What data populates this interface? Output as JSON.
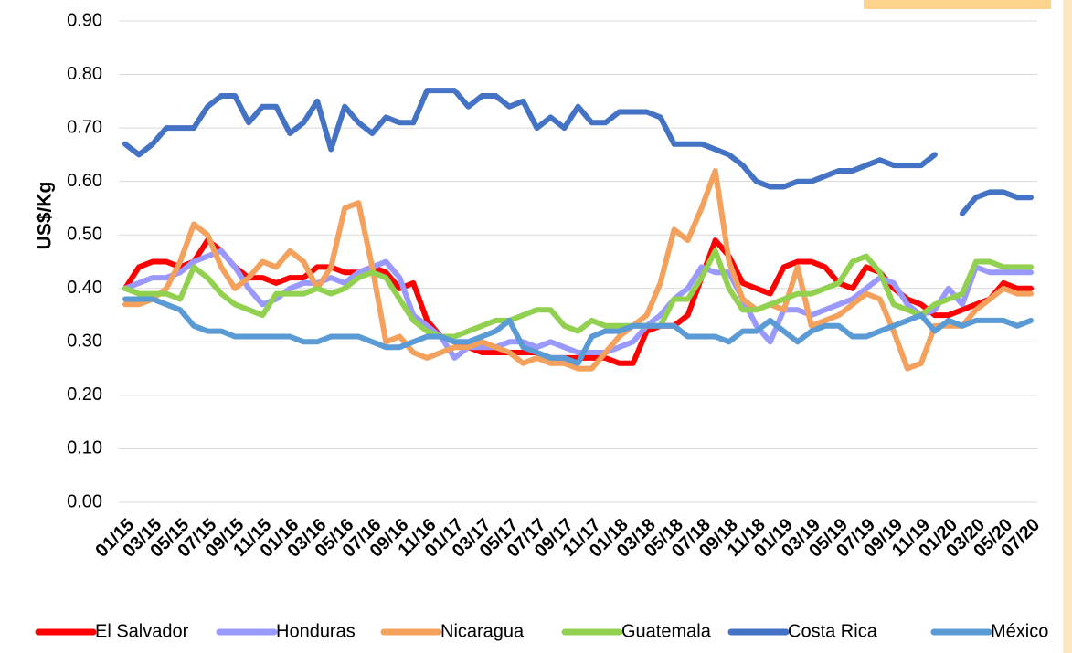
{
  "chart_data": {
    "type": "line",
    "y_label": "US$/Kg",
    "categories": [
      "01/15",
      null,
      "03/15",
      null,
      "05/15",
      null,
      "07/15",
      null,
      "09/15",
      null,
      "11/15",
      null,
      "01/16",
      null,
      "03/16",
      null,
      "05/16",
      null,
      "07/16",
      null,
      "09/16",
      null,
      "11/16",
      null,
      "01/17",
      null,
      "03/17",
      null,
      "05/17",
      null,
      "07/17",
      null,
      "09/17",
      null,
      "11/17",
      null,
      "01/18",
      null,
      "03/18",
      null,
      "05/18",
      null,
      "07/18",
      null,
      "09/18",
      null,
      "11/18",
      null,
      "01/19",
      null,
      "03/19",
      null,
      "05/19",
      null,
      "07/19",
      null,
      "09/19",
      null,
      "11/19",
      null,
      "01/20",
      null,
      "03/20",
      null,
      "05/20",
      null,
      "07/20"
    ],
    "ylim": [
      0,
      0.9
    ],
    "yticks": [
      {
        "value": 0,
        "label": "0.00"
      },
      {
        "value": 0.1,
        "label": "0.10"
      },
      {
        "value": 0.2,
        "label": "0.20"
      },
      {
        "value": 0.3,
        "label": "0.30"
      },
      {
        "value": 0.4,
        "label": "0.40"
      },
      {
        "value": 0.5,
        "label": "0.50"
      },
      {
        "value": 0.6,
        "label": "0.60"
      },
      {
        "value": 0.7,
        "label": "0.70"
      },
      {
        "value": 0.8,
        "label": "0.80"
      },
      {
        "value": 0.9,
        "label": "0.90"
      }
    ],
    "grid": true,
    "legend": "bottom",
    "series": [
      {
        "name": "El Salvador",
        "color": "#ff0000",
        "values": [
          0.4,
          0.44,
          0.45,
          0.45,
          0.44,
          0.45,
          0.49,
          0.47,
          0.44,
          0.42,
          0.42,
          0.41,
          0.42,
          0.42,
          0.44,
          0.44,
          0.43,
          0.43,
          0.44,
          0.43,
          0.4,
          0.41,
          0.34,
          0.31,
          0.3,
          0.29,
          0.28,
          0.28,
          0.28,
          0.28,
          0.28,
          0.27,
          0.27,
          0.27,
          0.27,
          0.27,
          0.26,
          0.26,
          0.32,
          0.33,
          0.33,
          0.35,
          0.42,
          0.49,
          0.46,
          0.41,
          0.4,
          0.39,
          0.44,
          0.45,
          0.45,
          0.44,
          0.41,
          0.4,
          0.44,
          0.43,
          0.4,
          0.38,
          0.37,
          0.35,
          0.35,
          0.36,
          0.37,
          0.38,
          0.41,
          0.4,
          0.4
        ]
      },
      {
        "name": "Honduras",
        "color": "#9999ff",
        "values": [
          0.4,
          0.41,
          0.42,
          0.42,
          0.43,
          0.45,
          0.46,
          0.47,
          0.44,
          0.4,
          0.37,
          0.38,
          0.4,
          0.41,
          0.41,
          0.42,
          0.41,
          0.43,
          0.44,
          0.45,
          0.42,
          0.35,
          0.33,
          0.31,
          0.27,
          0.29,
          0.29,
          0.29,
          0.3,
          0.3,
          0.29,
          0.3,
          0.29,
          0.28,
          0.28,
          0.28,
          0.29,
          0.3,
          0.33,
          0.35,
          0.38,
          0.4,
          0.44,
          0.43,
          0.43,
          0.38,
          0.33,
          0.3,
          0.36,
          0.36,
          0.35,
          0.36,
          0.37,
          0.38,
          0.4,
          0.42,
          0.41,
          0.37,
          0.35,
          0.36,
          0.4,
          0.37,
          0.44,
          0.43,
          0.43,
          0.43,
          0.43
        ]
      },
      {
        "name": "Nicaragua",
        "color": "#f4a15d",
        "values": [
          0.37,
          0.37,
          0.38,
          0.4,
          0.45,
          0.52,
          0.5,
          0.44,
          0.4,
          0.42,
          0.45,
          0.44,
          0.47,
          0.45,
          0.4,
          0.44,
          0.55,
          0.56,
          0.44,
          0.3,
          0.31,
          0.28,
          0.27,
          0.28,
          0.29,
          0.29,
          0.3,
          0.29,
          0.28,
          0.26,
          0.27,
          0.26,
          0.26,
          0.25,
          0.25,
          0.28,
          0.31,
          0.33,
          0.35,
          0.41,
          0.51,
          0.49,
          0.55,
          0.62,
          0.45,
          0.38,
          0.36,
          0.37,
          0.36,
          0.44,
          0.33,
          0.34,
          0.35,
          0.37,
          0.39,
          0.38,
          0.32,
          0.25,
          0.26,
          0.33,
          0.33,
          0.33,
          0.36,
          0.38,
          0.4,
          0.39,
          0.39
        ]
      },
      {
        "name": "Guatemala",
        "color": "#92d050",
        "values": [
          0.4,
          0.39,
          0.39,
          0.39,
          0.38,
          0.44,
          0.42,
          0.39,
          0.37,
          0.36,
          0.35,
          0.39,
          0.39,
          0.39,
          0.4,
          0.39,
          0.4,
          0.42,
          0.43,
          0.42,
          0.38,
          0.34,
          0.32,
          0.31,
          0.31,
          0.32,
          0.33,
          0.34,
          0.34,
          0.35,
          0.36,
          0.36,
          0.33,
          0.32,
          0.34,
          0.33,
          0.33,
          0.33,
          0.33,
          0.33,
          0.38,
          0.38,
          0.42,
          0.47,
          0.4,
          0.36,
          0.36,
          0.37,
          0.38,
          0.39,
          0.39,
          0.4,
          0.41,
          0.45,
          0.46,
          0.43,
          0.37,
          0.36,
          0.35,
          0.37,
          0.38,
          0.39,
          0.45,
          0.45,
          0.44,
          0.44,
          0.44
        ]
      },
      {
        "name": "Costa Rica",
        "color": "#4472c4",
        "values": [
          0.67,
          0.65,
          0.67,
          0.7,
          0.7,
          0.7,
          0.74,
          0.76,
          0.76,
          0.71,
          0.74,
          0.74,
          0.69,
          0.71,
          0.75,
          0.66,
          0.74,
          0.71,
          0.69,
          0.72,
          0.71,
          0.71,
          0.77,
          0.77,
          0.77,
          0.74,
          0.76,
          0.76,
          0.74,
          0.75,
          0.7,
          0.72,
          0.7,
          0.74,
          0.71,
          0.71,
          0.73,
          0.73,
          0.73,
          0.72,
          0.67,
          0.67,
          0.67,
          0.66,
          0.65,
          0.63,
          0.6,
          0.59,
          0.59,
          0.6,
          0.6,
          0.61,
          0.62,
          0.62,
          0.63,
          0.64,
          0.63,
          0.63,
          0.63,
          0.65,
          null,
          0.54,
          0.57,
          0.58,
          0.58,
          0.57,
          0.57
        ]
      },
      {
        "name": "México",
        "color": "#5b9bd5",
        "values": [
          0.38,
          0.38,
          0.38,
          0.37,
          0.36,
          0.33,
          0.32,
          0.32,
          0.31,
          0.31,
          0.31,
          0.31,
          0.31,
          0.3,
          0.3,
          0.31,
          0.31,
          0.31,
          0.3,
          0.29,
          0.29,
          0.3,
          0.31,
          0.31,
          0.3,
          0.3,
          0.31,
          0.32,
          0.34,
          0.29,
          0.28,
          0.27,
          0.27,
          0.26,
          0.31,
          0.32,
          0.32,
          0.33,
          0.33,
          0.33,
          0.33,
          0.31,
          0.31,
          0.31,
          0.3,
          0.32,
          0.32,
          0.34,
          0.32,
          0.3,
          0.32,
          0.33,
          0.33,
          0.31,
          0.31,
          0.32,
          0.33,
          0.34,
          0.35,
          0.32,
          0.34,
          0.33,
          0.34,
          0.34,
          0.34,
          0.33,
          0.34
        ]
      }
    ]
  }
}
